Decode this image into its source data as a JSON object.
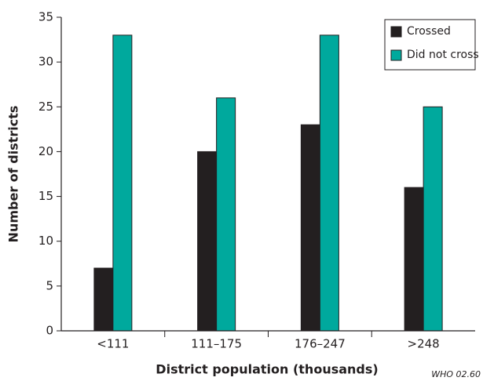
{
  "chart_data": {
    "type": "bar",
    "x_label": "District population (thousands)",
    "y_label": "Number of districts",
    "annotation": "WHO 02.60",
    "categories": [
      "<111",
      "111–175",
      "176–247",
      ">248"
    ],
    "series": [
      {
        "name": "Crossed",
        "color": "#231f20",
        "values": [
          7,
          20,
          23,
          16
        ]
      },
      {
        "name": "Did not cross",
        "color": "#00a99d",
        "values": [
          33,
          26,
          33,
          25
        ]
      }
    ],
    "ylim": [
      0,
      35
    ],
    "yticks": [
      0,
      5,
      10,
      15,
      20,
      25,
      30,
      35
    ],
    "grid": false,
    "legend": "upper right"
  }
}
